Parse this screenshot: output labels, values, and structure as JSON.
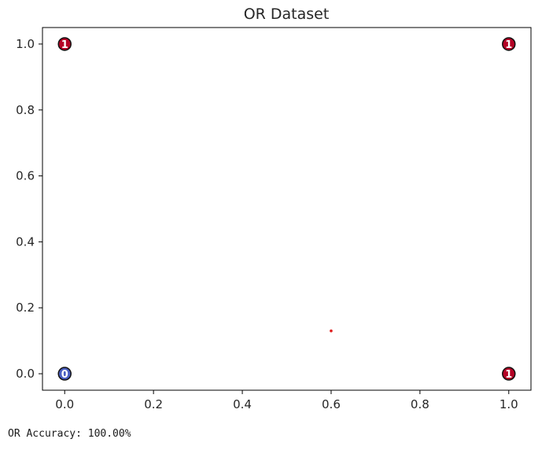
{
  "chart_data": {
    "type": "scatter",
    "title": "OR Dataset",
    "xlabel": "",
    "ylabel": "",
    "xlim": [
      -0.05,
      1.05
    ],
    "ylim": [
      -0.05,
      1.05
    ],
    "xticks": [
      0.0,
      0.2,
      0.4,
      0.6,
      0.8,
      1.0
    ],
    "xtick_labels": [
      "0.0",
      "0.2",
      "0.4",
      "0.6",
      "0.8",
      "1.0"
    ],
    "yticks": [
      0.0,
      0.2,
      0.4,
      0.6,
      0.8,
      1.0
    ],
    "ytick_labels": [
      "0.0",
      "0.2",
      "0.4",
      "0.6",
      "0.8",
      "1.0"
    ],
    "grid": false,
    "points": [
      {
        "x": 0,
        "y": 0,
        "label": "0",
        "color": "#4a5fc1"
      },
      {
        "x": 0,
        "y": 1,
        "label": "1",
        "color": "#b40426"
      },
      {
        "x": 1,
        "y": 0,
        "label": "1",
        "color": "#b40426"
      },
      {
        "x": 1,
        "y": 1,
        "label": "1",
        "color": "#b40426"
      }
    ],
    "marker": {
      "x": 0.6,
      "y": 0.13,
      "color": "#e02020"
    }
  },
  "output": {
    "accuracy_text": "OR Accuracy: 100.00%"
  }
}
